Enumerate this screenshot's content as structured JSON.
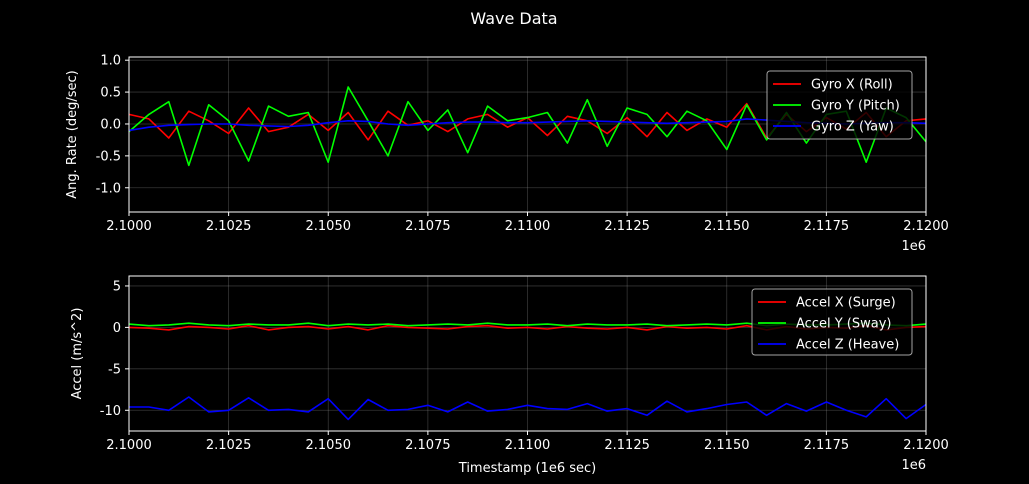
{
  "figure": {
    "title": "Wave Data"
  },
  "colors": {
    "roll": "#ff0000",
    "pitch": "#00ff00",
    "yaw": "#0000ff",
    "background": "#000000",
    "axes": "#ffffff"
  },
  "chart_data": [
    {
      "type": "line",
      "ylabel": "Ang. Rate (deg/sec)",
      "xlim": [
        2.1,
        2.12
      ],
      "ylim": [
        -1.38,
        1.05
      ],
      "x_offset_label": "1e6",
      "x_ticks": [
        "2.1000",
        "2.1025",
        "2.1050",
        "2.1075",
        "2.1100",
        "2.1125",
        "2.1150",
        "2.1175",
        "2.1200"
      ],
      "y_ticks": [
        "-1.0",
        "-0.5",
        "0.0",
        "0.5",
        "1.0"
      ],
      "y_tick_values": [
        -1.0,
        -0.5,
        0.0,
        0.5,
        1.0
      ],
      "grid": true,
      "legend_position": "upper right",
      "x": [
        2.1,
        2.1005,
        2.101,
        2.1015,
        2.102,
        2.1025,
        2.103,
        2.1035,
        2.104,
        2.1045,
        2.105,
        2.1055,
        2.106,
        2.1065,
        2.107,
        2.1075,
        2.108,
        2.1085,
        2.109,
        2.1095,
        2.11,
        2.1105,
        2.111,
        2.1115,
        2.112,
        2.1125,
        2.113,
        2.1135,
        2.114,
        2.1145,
        2.115,
        2.1155,
        2.116,
        2.1165,
        2.117,
        2.1175,
        2.118,
        2.1185,
        2.119,
        2.1195,
        2.12
      ],
      "series": [
        {
          "name": "Gyro X (Roll)",
          "color": "#ff0000",
          "values": [
            0.15,
            0.08,
            -0.22,
            0.2,
            0.05,
            -0.15,
            0.25,
            -0.12,
            -0.05,
            0.15,
            -0.1,
            0.18,
            -0.25,
            0.2,
            -0.02,
            0.05,
            -0.12,
            0.08,
            0.15,
            -0.05,
            0.1,
            -0.18,
            0.12,
            0.05,
            -0.15,
            0.1,
            -0.2,
            0.18,
            -0.1,
            0.08,
            -0.05,
            0.32,
            -0.22,
            0.15,
            -0.12,
            0.1,
            -0.08,
            0.18,
            -0.2,
            0.05,
            0.08
          ]
        },
        {
          "name": "Gyro Y (Pitch)",
          "color": "#00ff00",
          "values": [
            -0.12,
            0.15,
            0.35,
            -0.65,
            0.3,
            0.05,
            -0.58,
            0.28,
            0.12,
            0.18,
            -0.6,
            0.58,
            0.05,
            -0.5,
            0.35,
            -0.1,
            0.22,
            -0.45,
            0.28,
            0.05,
            0.1,
            0.18,
            -0.3,
            0.38,
            -0.35,
            0.25,
            0.15,
            -0.2,
            0.2,
            0.05,
            -0.4,
            0.3,
            -0.25,
            0.18,
            -0.3,
            0.15,
            0.2,
            -0.6,
            0.25,
            0.1,
            -0.28
          ]
        },
        {
          "name": "Gyro Z (Yaw)",
          "color": "#0000ff",
          "values": [
            -0.1,
            -0.05,
            -0.02,
            -0.01,
            0.0,
            0.0,
            -0.02,
            -0.03,
            -0.04,
            -0.02,
            0.02,
            0.05,
            0.04,
            0.0,
            -0.02,
            0.0,
            0.02,
            0.03,
            0.03,
            0.02,
            0.02,
            0.03,
            0.04,
            0.05,
            0.04,
            0.03,
            0.02,
            0.01,
            0.02,
            0.03,
            0.04,
            0.08,
            0.06,
            0.04,
            0.02,
            0.01,
            0.0,
            0.01,
            0.02,
            0.02,
            0.01
          ]
        }
      ]
    },
    {
      "type": "line",
      "xlabel": "Timestamp (1e6 sec)",
      "ylabel": "Accel (m/s^2)",
      "xlim": [
        2.1,
        2.12
      ],
      "ylim": [
        -12.5,
        6.2
      ],
      "x_offset_label": "1e6",
      "x_ticks": [
        "2.1000",
        "2.1025",
        "2.1050",
        "2.1075",
        "2.1100",
        "2.1125",
        "2.1150",
        "2.1175",
        "2.1200"
      ],
      "y_ticks": [
        "-10",
        "-5",
        "0",
        "5"
      ],
      "y_tick_values": [
        -10,
        -5,
        0,
        5
      ],
      "grid": true,
      "legend_position": "upper right",
      "x": [
        2.1,
        2.1005,
        2.101,
        2.1015,
        2.102,
        2.1025,
        2.103,
        2.1035,
        2.104,
        2.1045,
        2.105,
        2.1055,
        2.106,
        2.1065,
        2.107,
        2.1075,
        2.108,
        2.1085,
        2.109,
        2.1095,
        2.11,
        2.1105,
        2.111,
        2.1115,
        2.112,
        2.1125,
        2.113,
        2.1135,
        2.114,
        2.1145,
        2.115,
        2.1155,
        2.116,
        2.1165,
        2.117,
        2.1175,
        2.118,
        2.1185,
        2.119,
        2.1195,
        2.12
      ],
      "series": [
        {
          "name": "Accel X (Surge)",
          "color": "#ff0000",
          "values": [
            0.0,
            -0.1,
            -0.3,
            0.1,
            0.0,
            -0.2,
            0.2,
            -0.3,
            0.0,
            0.1,
            -0.2,
            0.1,
            -0.3,
            0.2,
            0.0,
            -0.1,
            -0.2,
            0.1,
            0.2,
            -0.1,
            0.0,
            -0.2,
            0.1,
            -0.1,
            -0.2,
            0.0,
            -0.3,
            0.1,
            -0.1,
            0.0,
            -0.2,
            0.2,
            -0.3,
            0.1,
            -0.2,
            0.0,
            -0.1,
            0.2,
            -0.3,
            0.0,
            0.1
          ]
        },
        {
          "name": "Accel Y (Sway)",
          "color": "#00ff00",
          "values": [
            0.4,
            0.2,
            0.3,
            0.5,
            0.3,
            0.2,
            0.4,
            0.3,
            0.3,
            0.5,
            0.2,
            0.4,
            0.3,
            0.4,
            0.2,
            0.3,
            0.4,
            0.3,
            0.5,
            0.3,
            0.3,
            0.4,
            0.2,
            0.4,
            0.3,
            0.3,
            0.4,
            0.2,
            0.3,
            0.4,
            0.3,
            0.5,
            0.2,
            0.4,
            0.3,
            0.3,
            0.4,
            0.5,
            0.3,
            0.2,
            0.4
          ]
        },
        {
          "name": "Accel Z (Heave)",
          "color": "#0000ff",
          "values": [
            -9.6,
            -9.6,
            -10.0,
            -8.4,
            -10.2,
            -10.0,
            -8.5,
            -10.0,
            -9.9,
            -10.2,
            -8.6,
            -11.1,
            -8.7,
            -10.0,
            -9.9,
            -9.4,
            -10.2,
            -9.0,
            -10.1,
            -9.9,
            -9.4,
            -9.8,
            -9.9,
            -9.2,
            -10.1,
            -9.8,
            -10.6,
            -8.9,
            -10.2,
            -9.8,
            -9.3,
            -9.0,
            -10.6,
            -9.2,
            -10.1,
            -9.0,
            -10.0,
            -10.8,
            -8.6,
            -11.0,
            -9.3
          ]
        }
      ]
    }
  ]
}
